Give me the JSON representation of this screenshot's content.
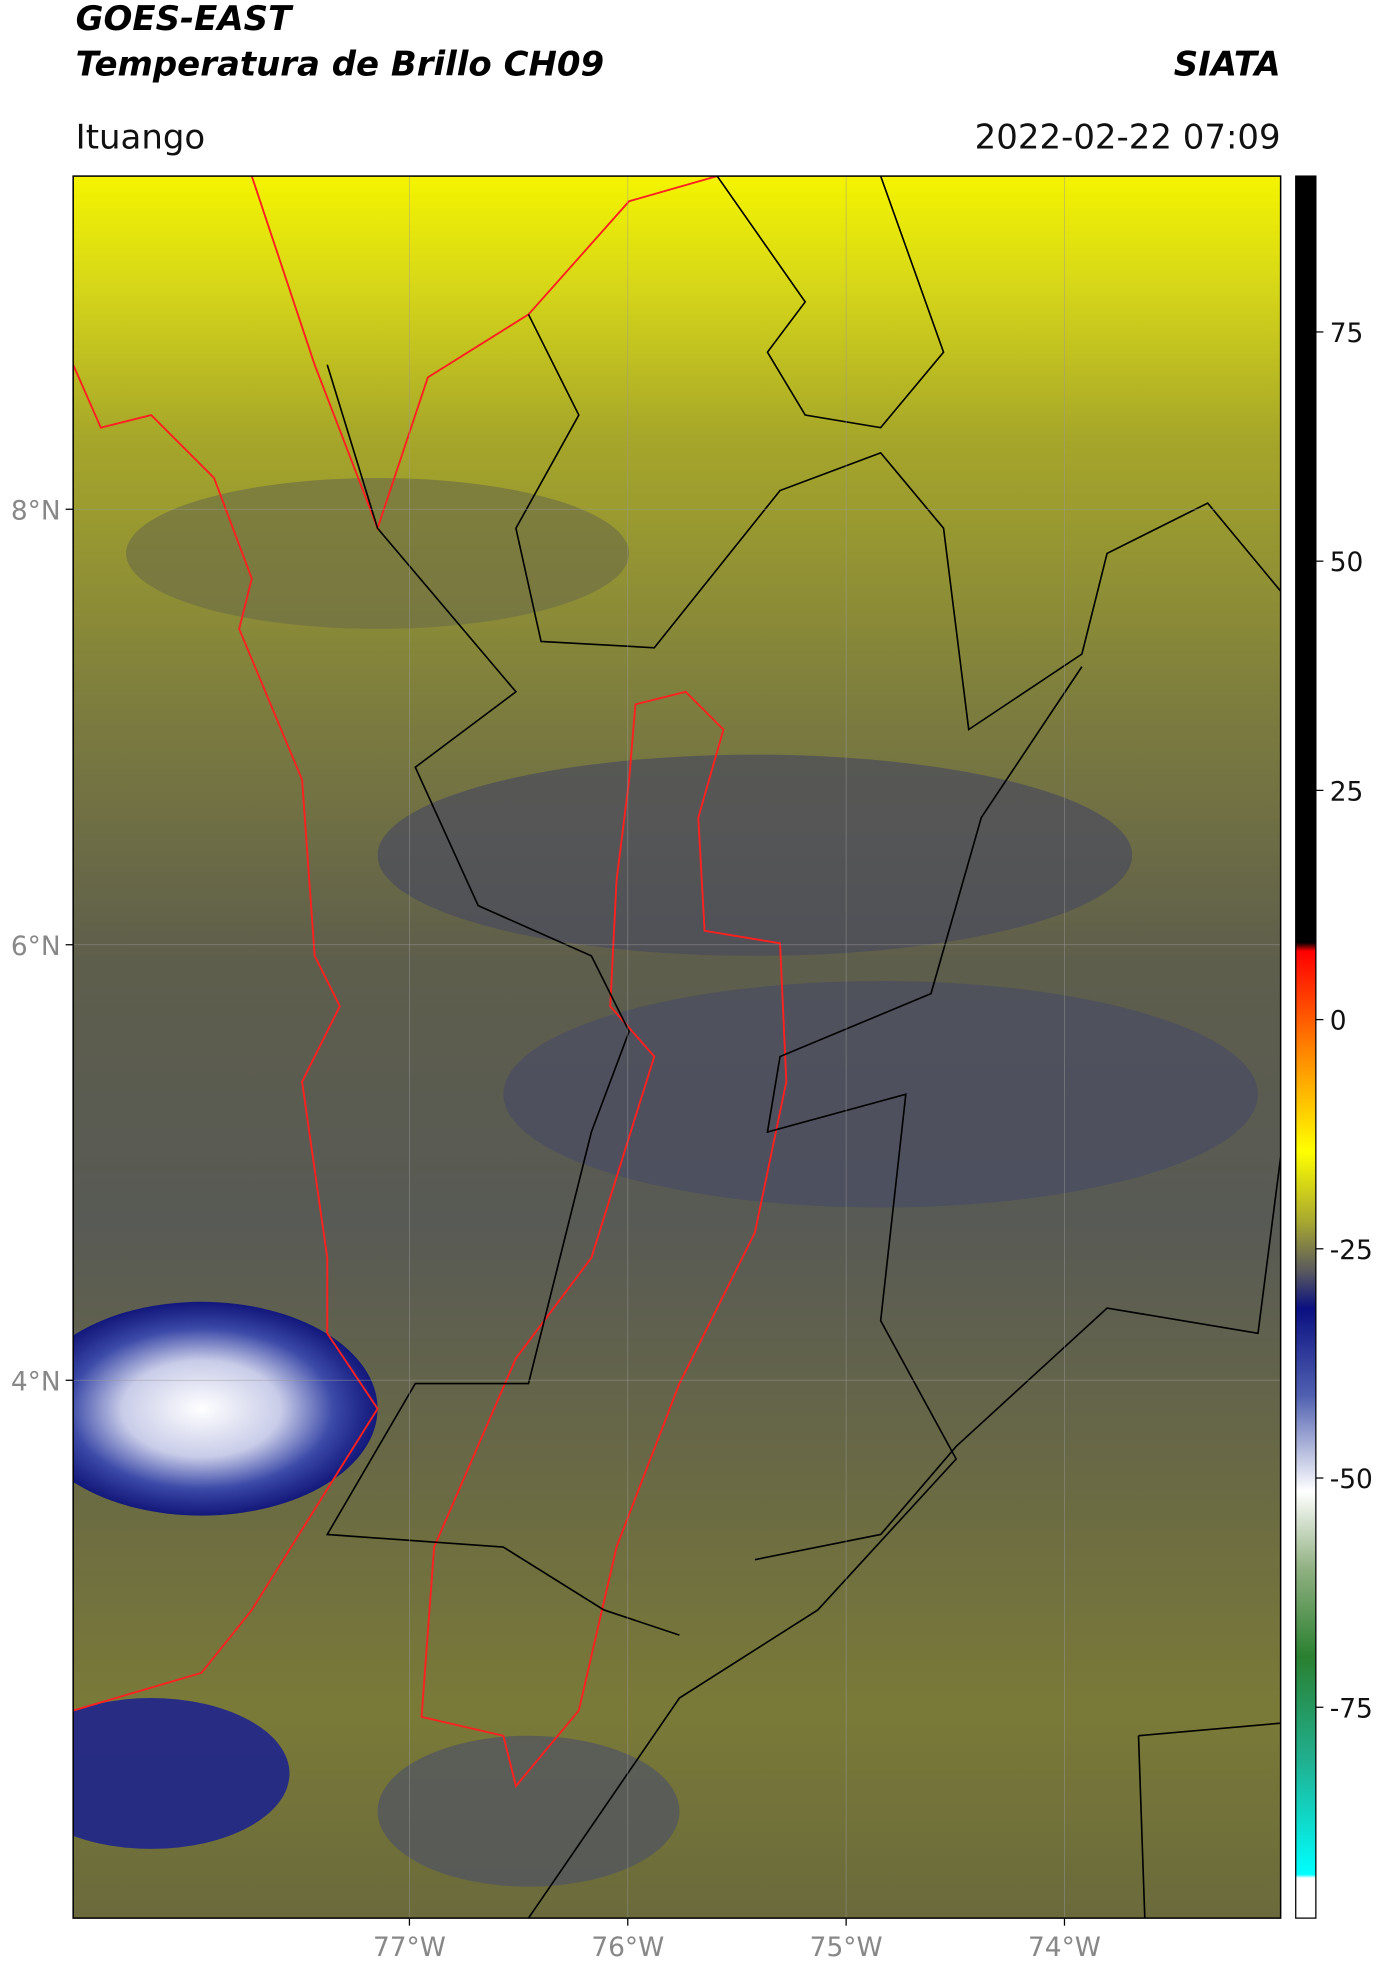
{
  "header": {
    "title": "GOES-EAST",
    "subtitle": "Temperatura de Brillo CH09",
    "source": "SIATA",
    "location": "Ituango",
    "datetime": "2022-02-22 07:09"
  },
  "map": {
    "xlim": [
      -78.54,
      -73.01
    ],
    "ylim": [
      1.53,
      9.53
    ],
    "xticks": [
      {
        "value": -77,
        "label": "77°W"
      },
      {
        "value": -76,
        "label": "76°W"
      },
      {
        "value": -75,
        "label": "75°W"
      },
      {
        "value": -74,
        "label": "74°W"
      }
    ],
    "yticks": [
      {
        "value": 8,
        "label": "8°N"
      },
      {
        "value": 6,
        "label": "6°N"
      },
      {
        "value": 4,
        "label": "4°N"
      }
    ],
    "grid": true
  },
  "colorbar": {
    "lim": [
      -98,
      92
    ],
    "ticks": [
      75,
      50,
      25,
      0,
      -25,
      -50,
      -75
    ]
  }
}
